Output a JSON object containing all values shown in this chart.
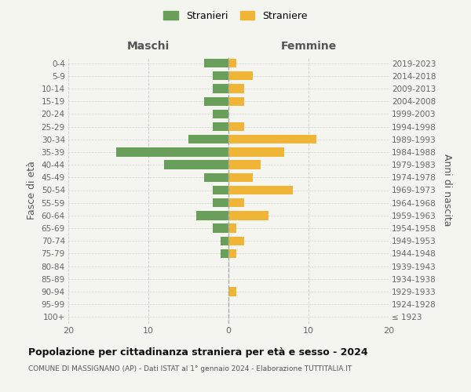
{
  "age_groups": [
    "100+",
    "95-99",
    "90-94",
    "85-89",
    "80-84",
    "75-79",
    "70-74",
    "65-69",
    "60-64",
    "55-59",
    "50-54",
    "45-49",
    "40-44",
    "35-39",
    "30-34",
    "25-29",
    "20-24",
    "15-19",
    "10-14",
    "5-9",
    "0-4"
  ],
  "birth_years": [
    "≤ 1923",
    "1924-1928",
    "1929-1933",
    "1934-1938",
    "1939-1943",
    "1944-1948",
    "1949-1953",
    "1954-1958",
    "1959-1963",
    "1964-1968",
    "1969-1973",
    "1974-1978",
    "1979-1983",
    "1984-1988",
    "1989-1993",
    "1994-1998",
    "1999-2003",
    "2004-2008",
    "2009-2013",
    "2014-2018",
    "2019-2023"
  ],
  "males": [
    0,
    0,
    0,
    0,
    0,
    1,
    1,
    2,
    4,
    2,
    2,
    3,
    8,
    14,
    5,
    2,
    2,
    3,
    2,
    2,
    3
  ],
  "females": [
    0,
    0,
    1,
    0,
    0,
    1,
    2,
    1,
    5,
    2,
    8,
    3,
    4,
    7,
    11,
    2,
    0,
    2,
    2,
    3,
    1
  ],
  "male_color": "#6a9e5b",
  "female_color": "#f0b537",
  "background_color": "#f5f5f0",
  "grid_color": "#d0d0d0",
  "xlim": 20,
  "title": "Popolazione per cittadinanza straniera per età e sesso - 2024",
  "subtitle": "COMUNE DI MASSIGNANO (AP) - Dati ISTAT al 1° gennaio 2024 - Elaborazione TUTTITALIA.IT",
  "ylabel_left": "Fasce di età",
  "ylabel_right": "Anni di nascita",
  "label_maschi": "Maschi",
  "label_femmine": "Femmine",
  "legend_stranieri": "Stranieri",
  "legend_straniere": "Straniere"
}
